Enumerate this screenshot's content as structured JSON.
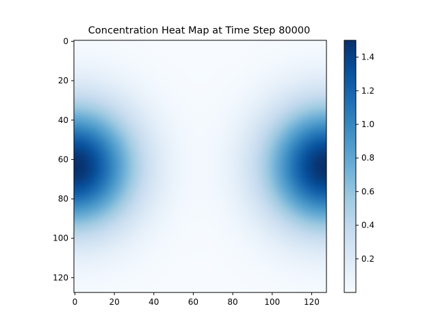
{
  "chart_data": {
    "type": "heatmap",
    "title": "Concentration Heat Map at Time Step 80000",
    "xlabel": "",
    "ylabel": "",
    "grid_size": 128,
    "xlim": [
      0,
      128
    ],
    "ylim": [
      128,
      0
    ],
    "x_ticks": [
      0,
      20,
      40,
      60,
      80,
      100,
      120
    ],
    "y_ticks": [
      0,
      20,
      40,
      60,
      80,
      100,
      120
    ],
    "colormap": "Blues",
    "colormap_stops": [
      "#f7fbff",
      "#deebf7",
      "#c6dbef",
      "#9ecae1",
      "#6baed6",
      "#4292c6",
      "#2171b5",
      "#08519c",
      "#08306b"
    ],
    "color_range": [
      0.0,
      1.5
    ],
    "colorbar_ticks": [
      0.2,
      0.4,
      0.6,
      0.8,
      1.0,
      1.2,
      1.4
    ],
    "colorbar_tick_labels": [
      "0.2",
      "0.4",
      "0.6",
      "0.8",
      "1.0",
      "1.2",
      "1.4"
    ],
    "grid": false,
    "hotspots": [
      {
        "x": 0,
        "y": 64,
        "peak": 1.5,
        "radius": 32
      },
      {
        "x": 128,
        "y": 64,
        "peak": 1.5,
        "radius": 32
      }
    ],
    "background_level": 0.0
  }
}
